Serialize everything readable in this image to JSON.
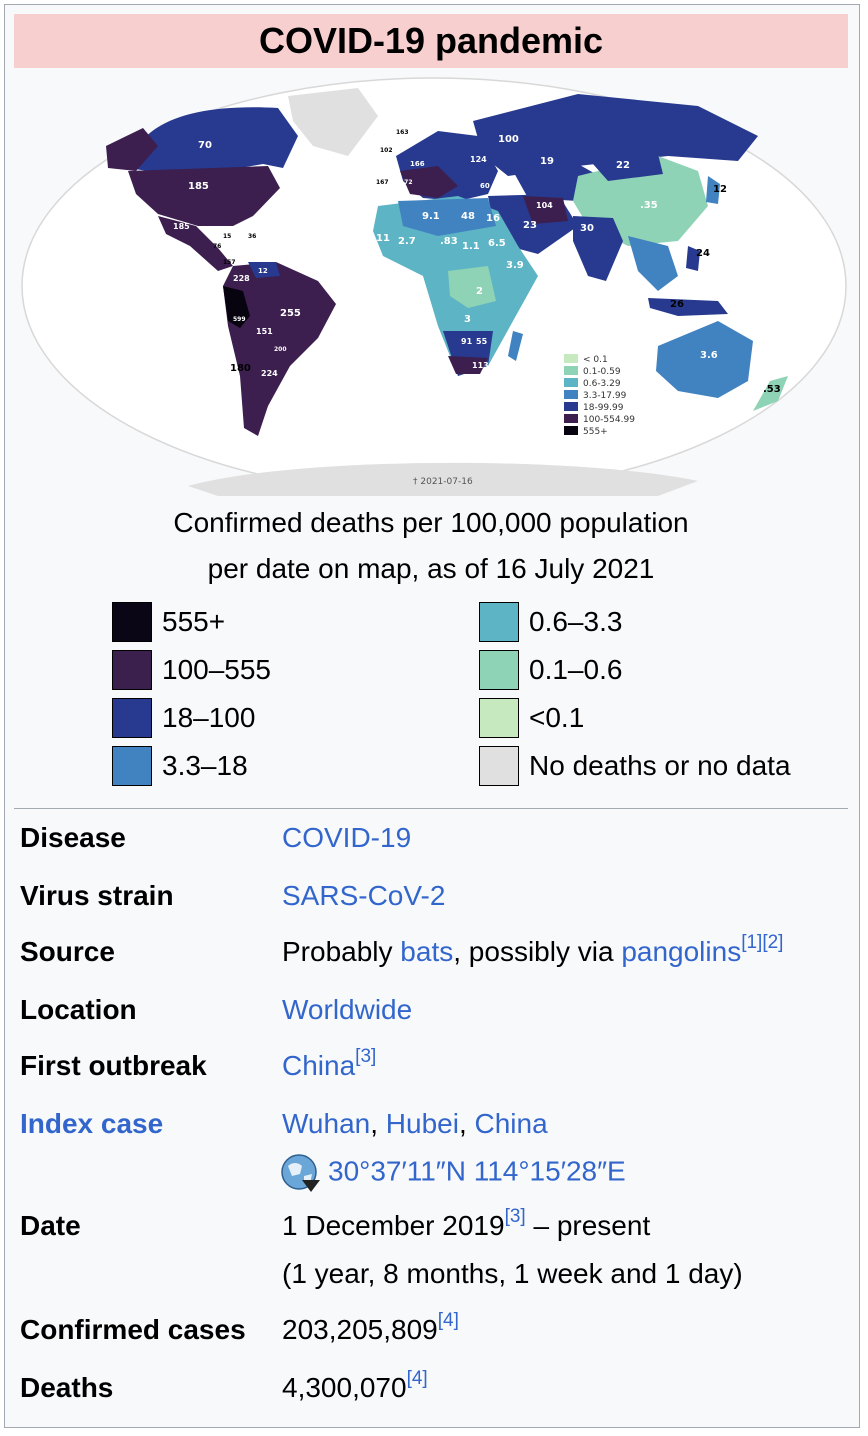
{
  "title": "COVID-19 pandemic",
  "map": {
    "date_stamp": "† 2021-07-16",
    "labels": [
      {
        "id": "canada",
        "text": "70"
      },
      {
        "id": "usa",
        "text": "185"
      },
      {
        "id": "mexico",
        "text": "185"
      },
      {
        "id": "brazil",
        "text": "255"
      },
      {
        "id": "argentina",
        "text": "224"
      },
      {
        "id": "chile",
        "text": "180"
      },
      {
        "id": "peru",
        "text": "599"
      },
      {
        "id": "bolivia",
        "text": "151"
      },
      {
        "id": "colombia",
        "text": "228"
      },
      {
        "id": "paraguay",
        "text": "200"
      },
      {
        "id": "venezuela",
        "text": "12"
      },
      {
        "id": "ecuador",
        "text": "157"
      },
      {
        "id": "cuba",
        "text": "15"
      },
      {
        "id": "guatemala",
        "text": "76"
      },
      {
        "id": "caribbean",
        "text": "36"
      },
      {
        "id": "russia",
        "text": "100"
      },
      {
        "id": "kazakhstan",
        "text": "19"
      },
      {
        "id": "mongolia",
        "text": "22"
      },
      {
        "id": "china",
        "text": ".35"
      },
      {
        "id": "japan",
        "text": "12"
      },
      {
        "id": "india",
        "text": "30"
      },
      {
        "id": "iran",
        "text": "104"
      },
      {
        "id": "saudi",
        "text": "23"
      },
      {
        "id": "egypt",
        "text": "16"
      },
      {
        "id": "libya",
        "text": "48"
      },
      {
        "id": "algeria",
        "text": "9.1"
      },
      {
        "id": "mali",
        "text": ".83"
      },
      {
        "id": "nigeria",
        "text": "1.1"
      },
      {
        "id": "ethiopia",
        "text": "6.5"
      },
      {
        "id": "kenya",
        "text": "3.9"
      },
      {
        "id": "drc",
        "text": "2"
      },
      {
        "id": "angola",
        "text": "3"
      },
      {
        "id": "namibia",
        "text": "91"
      },
      {
        "id": "botswana",
        "text": "55"
      },
      {
        "id": "south_africa",
        "text": "113"
      },
      {
        "id": "australia",
        "text": "3.6"
      },
      {
        "id": "new_zealand",
        "text": ".53"
      },
      {
        "id": "philippines",
        "text": "24"
      },
      {
        "id": "indonesia",
        "text": "26"
      },
      {
        "id": "mauritania",
        "text": "11"
      },
      {
        "id": "senegal",
        "text": "2.7"
      },
      {
        "id": "ukraine",
        "text": "124"
      },
      {
        "id": "turkey",
        "text": "60"
      },
      {
        "id": "italy",
        "text": "166"
      },
      {
        "id": "spain",
        "text": "172"
      },
      {
        "id": "uk",
        "text": "102"
      },
      {
        "id": "iceland",
        "text": "163"
      },
      {
        "id": "portugal",
        "text": "167"
      }
    ],
    "legend": [
      {
        "label": "< 0.1",
        "color": "#c7e9c0"
      },
      {
        "label": "0.1-0.59",
        "color": "#8fd3b6"
      },
      {
        "label": "0.6-3.29",
        "color": "#5db4c4"
      },
      {
        "label": "3.3-17.99",
        "color": "#4182c0"
      },
      {
        "label": "18-99.99",
        "color": "#273a8f"
      },
      {
        "label": "100-554.99",
        "color": "#3c1e4f"
      },
      {
        "label": "555+",
        "color": "#08040f"
      }
    ]
  },
  "caption": {
    "line1": "Confirmed deaths per 100,000 population",
    "line2": "per date on map, as of 16 July 2021"
  },
  "legend": [
    {
      "label": "555+",
      "color": "#0a0616"
    },
    {
      "label": "100–555",
      "color": "#3b1f4d"
    },
    {
      "label": "18–100",
      "color": "#273a8f"
    },
    {
      "label": "3.3–18",
      "color": "#4182c0"
    },
    {
      "label": "0.6–3.3",
      "color": "#5db4c4"
    },
    {
      "label": "0.1–0.6",
      "color": "#8fd3b6"
    },
    {
      "label": "<0.1",
      "color": "#c7e9c0"
    },
    {
      "label": "No deaths or no data",
      "color": "#e0e0e0"
    }
  ],
  "rows": {
    "disease": {
      "label": "Disease",
      "value": "COVID-19"
    },
    "virus": {
      "label": "Virus strain",
      "value": "SARS-CoV-2"
    },
    "source": {
      "label": "Source",
      "pre": "Probably ",
      "link1": "bats",
      "mid": ", possibly via ",
      "link2": "pangolins",
      "ref1": "[1]",
      "ref2": "[2]"
    },
    "location": {
      "label": "Location",
      "value": "Worldwide"
    },
    "first_outbreak": {
      "label": "First outbreak",
      "value": "China",
      "ref": "[3]"
    },
    "index_case": {
      "label": "Index case",
      "city": "Wuhan",
      "sep": ", ",
      "province": "Hubei",
      "country": "China",
      "coords": "30°37′11″N 114°15′28″E"
    },
    "date": {
      "label": "Date",
      "start": "1 December 2019",
      "ref": "[3]",
      "rest": " – present",
      "duration": "(1 year, 8 months, 1 week and 1 day)"
    },
    "cases": {
      "label": "Confirmed cases",
      "value": "203,205,809",
      "ref": "[4]"
    },
    "deaths": {
      "label": "Deaths",
      "value": "4,300,070",
      "ref": "[4]"
    }
  }
}
